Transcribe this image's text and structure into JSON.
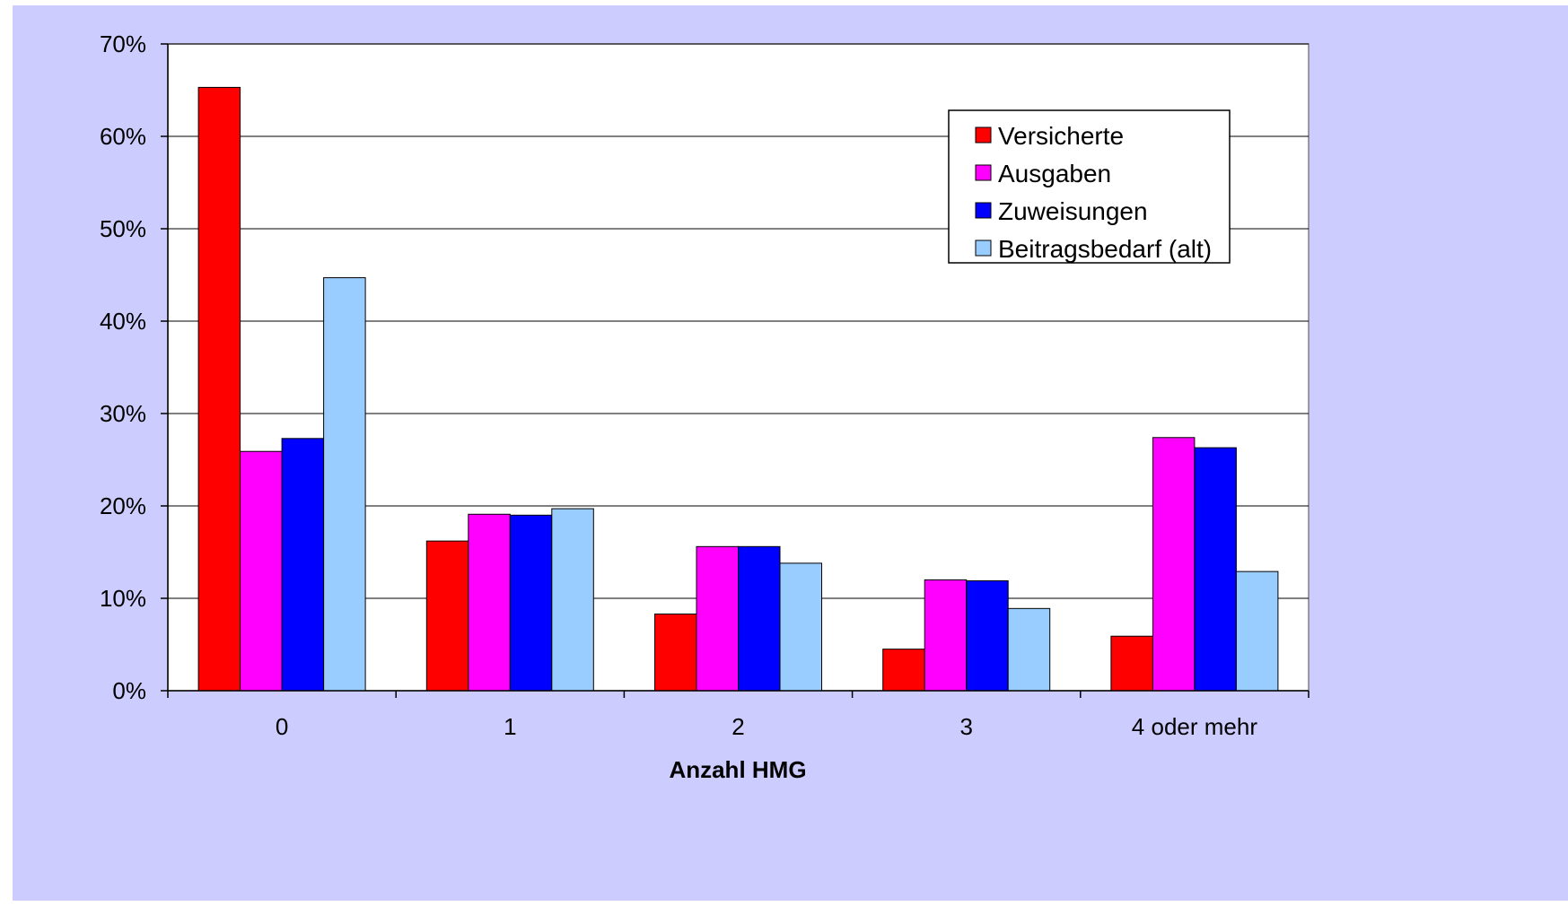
{
  "chart_data": {
    "type": "bar",
    "categories": [
      "0",
      "1",
      "2",
      "3",
      "4 oder mehr"
    ],
    "series": [
      {
        "name": "Versicherte",
        "color": "#ff0000",
        "values": [
          65.3,
          16.2,
          8.3,
          4.5,
          5.9
        ]
      },
      {
        "name": "Ausgaben",
        "color": "#ff00ff",
        "values": [
          25.9,
          19.1,
          15.6,
          12.0,
          27.4
        ]
      },
      {
        "name": "Zuweisungen",
        "color": "#0000ff",
        "values": [
          27.3,
          19.0,
          15.6,
          11.9,
          26.3
        ]
      },
      {
        "name": "Beitragsbedarf (alt)",
        "color": "#99ccff",
        "values": [
          44.7,
          19.7,
          13.8,
          8.9,
          12.9
        ]
      }
    ],
    "title": "",
    "xlabel": "Anzahl HMG",
    "ylabel": "",
    "ylim": [
      0,
      70
    ],
    "yticks": [
      0,
      10,
      20,
      30,
      40,
      50,
      60,
      70
    ],
    "ytick_labels": [
      "0%",
      "10%",
      "20%",
      "30%",
      "40%",
      "50%",
      "60%",
      "70%"
    ],
    "grid": true,
    "legend_position": "top-right",
    "plot_background": "#ffffff",
    "figure_background": "#ccccff"
  }
}
